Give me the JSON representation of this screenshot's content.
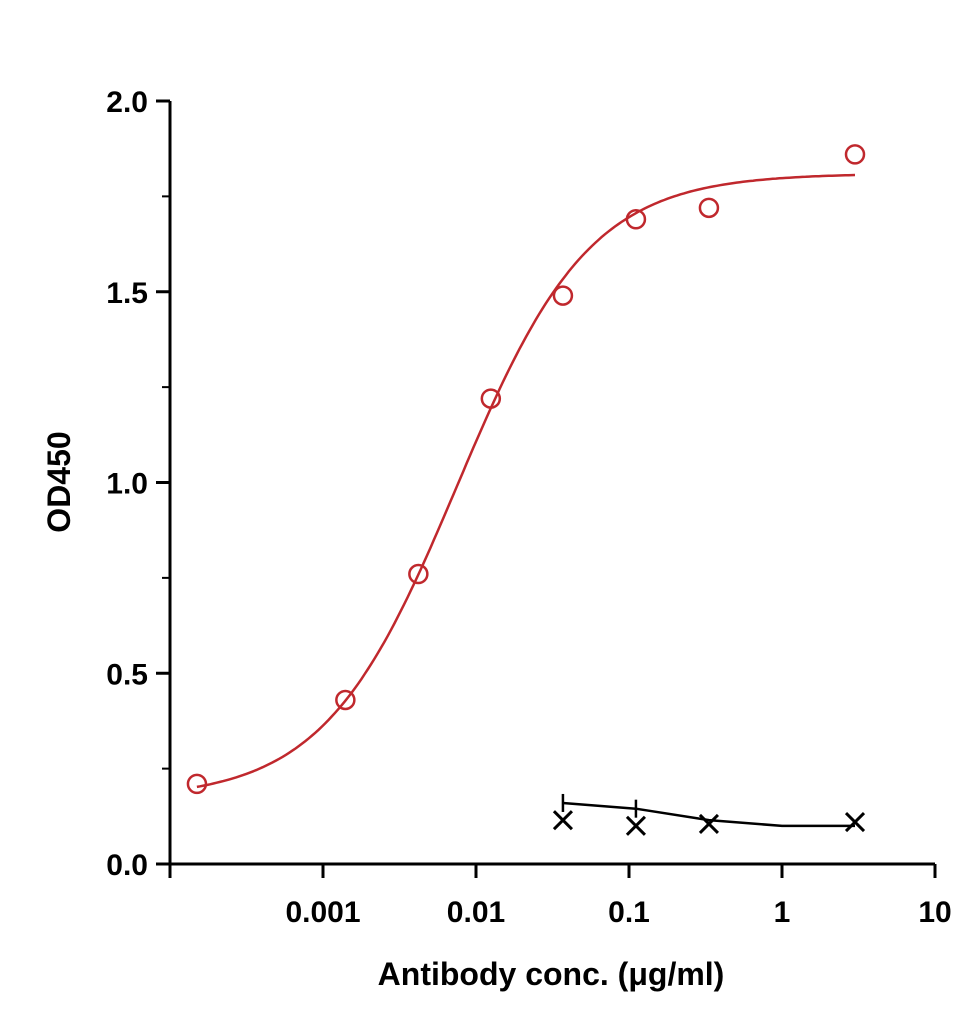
{
  "chart_data": {
    "type": "scatter",
    "xlabel": "Antibody conc. (μg/ml)",
    "ylabel": "OD450",
    "x_scale": "log",
    "xlim": [
      0.0001,
      10
    ],
    "ylim": [
      0,
      2.0
    ],
    "x_ticks": [
      0.001,
      0.01,
      0.1,
      1,
      10
    ],
    "x_tick_labels": [
      "0.001",
      "0.01",
      "0.1",
      "1",
      "10"
    ],
    "y_ticks": [
      0,
      0.5,
      1.0,
      1.5,
      2.0
    ],
    "y_tick_labels": [
      "0.0",
      "0.5",
      "1.0",
      "1.5",
      "2.0"
    ],
    "grid": false,
    "legend": "none",
    "series": [
      {
        "marker": "circle",
        "color": "#c0282d",
        "x": [
          0.00015,
          0.0014,
          0.0042,
          0.0125,
          0.037,
          0.111,
          0.333,
          3.0
        ],
        "y": [
          0.21,
          0.43,
          0.76,
          1.22,
          1.49,
          1.69,
          1.72,
          1.86
        ],
        "fit": {
          "type": "4PL",
          "bottom": 0.17,
          "top": 1.81,
          "ec50": 0.0075,
          "hill": 1.0,
          "x_range": [
            0.00015,
            3.0
          ]
        }
      },
      {
        "marker": "x",
        "color": "#000000",
        "x": [
          0.037,
          0.111,
          0.333,
          3.0
        ],
        "y": [
          0.115,
          0.1,
          0.105,
          0.11
        ],
        "fit": {
          "type": "line",
          "x": [
            0.037,
            0.111,
            0.333,
            1.0,
            3.0
          ],
          "y": [
            0.16,
            0.145,
            0.115,
            0.1,
            0.1
          ]
        }
      }
    ]
  }
}
